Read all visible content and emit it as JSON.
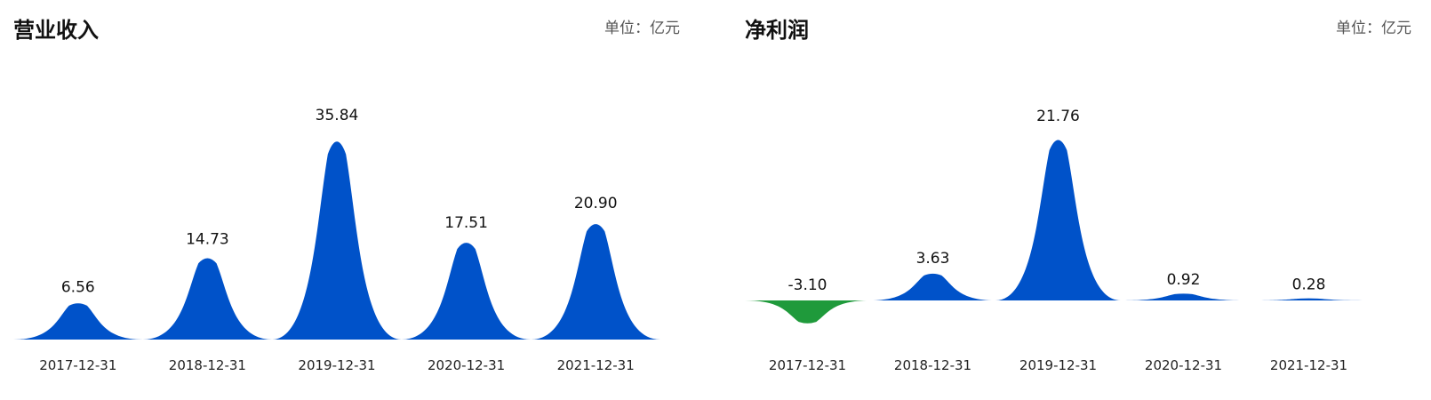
{
  "panels": [
    {
      "title": "营业收入",
      "unit": "单位：亿元"
    },
    {
      "title": "净利润",
      "unit": "单位：亿元"
    }
  ],
  "chart_data": [
    {
      "type": "area",
      "title": "营业收入",
      "unit": "单位：亿元",
      "categories": [
        "2017-12-31",
        "2018-12-31",
        "2019-12-31",
        "2020-12-31",
        "2021-12-31"
      ],
      "values": [
        6.56,
        14.73,
        35.84,
        17.51,
        20.9
      ],
      "value_labels": [
        "6.56",
        "14.73",
        "35.84",
        "17.51",
        "20.90"
      ],
      "ylim": [
        0,
        35.84
      ],
      "colors": {
        "positive": "#0052c9",
        "negative": "#1f9a3b"
      }
    },
    {
      "type": "area",
      "title": "净利润",
      "unit": "单位：亿元",
      "categories": [
        "2017-12-31",
        "2018-12-31",
        "2019-12-31",
        "2020-12-31",
        "2021-12-31"
      ],
      "values": [
        -3.1,
        3.63,
        21.76,
        0.92,
        0.28
      ],
      "value_labels": [
        "-3.10",
        "3.63",
        "21.76",
        "0.92",
        "0.28"
      ],
      "ylim": [
        -3.1,
        21.76
      ],
      "colors": {
        "positive": "#0052c9",
        "negative": "#1f9a3b"
      }
    }
  ]
}
